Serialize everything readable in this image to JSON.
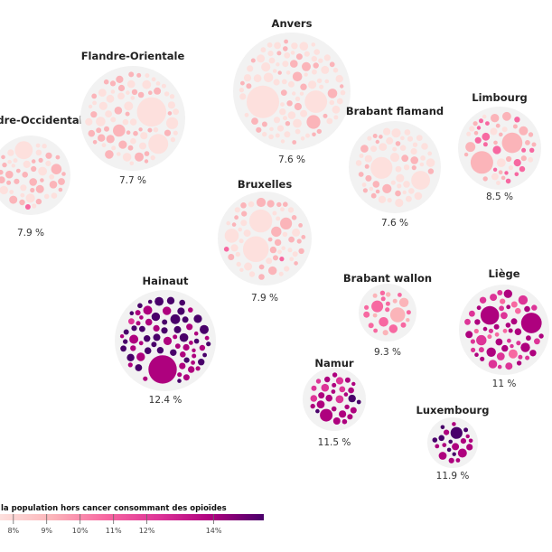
{
  "chart_data": {
    "type": "bubble-cluster",
    "title": "",
    "colors": {
      "background_disc": "#f2f2f2",
      "scale_low": "#fde0dd",
      "scale_mid1": "#fbb4b9",
      "scale_mid2": "#f768a1",
      "scale_mid3": "#dd3497",
      "scale_mid4": "#ae017e",
      "scale_high": "#49006a"
    },
    "provinces": [
      {
        "name": "Flandre-Occidentale",
        "value": 7.9,
        "label": "7.9 %"
      },
      {
        "name": "Flandre-Orientale",
        "value": 7.7,
        "label": "7.7 %"
      },
      {
        "name": "Anvers",
        "value": 7.6,
        "label": "7.6 %"
      },
      {
        "name": "Brabant flamand",
        "value": 7.6,
        "label": "7.6 %"
      },
      {
        "name": "Limbourg",
        "value": 8.5,
        "label": "8.5 %"
      },
      {
        "name": "Bruxelles",
        "value": 7.9,
        "label": "7.9 %"
      },
      {
        "name": "Hainaut",
        "value": 12.4,
        "label": "12.4 %"
      },
      {
        "name": "Brabant wallon",
        "value": 9.3,
        "label": "9.3 %"
      },
      {
        "name": "Liège",
        "value": 11,
        "label": "11 %"
      },
      {
        "name": "Namur",
        "value": 11.5,
        "label": "11.5 %"
      },
      {
        "name": "Luxembourg",
        "value": 11.9,
        "label": "11.9 %"
      }
    ],
    "legend": {
      "title": "la population hors cancer consommant des opioïdes",
      "min": 7.6,
      "max": 15.5,
      "ticks": [
        {
          "value": 8,
          "label": "8%"
        },
        {
          "value": 9,
          "label": "9%"
        },
        {
          "value": 10,
          "label": "10%"
        },
        {
          "value": 11,
          "label": "11%"
        },
        {
          "value": 12,
          "label": "12%"
        },
        {
          "value": 14,
          "label": "14%"
        }
      ]
    }
  }
}
